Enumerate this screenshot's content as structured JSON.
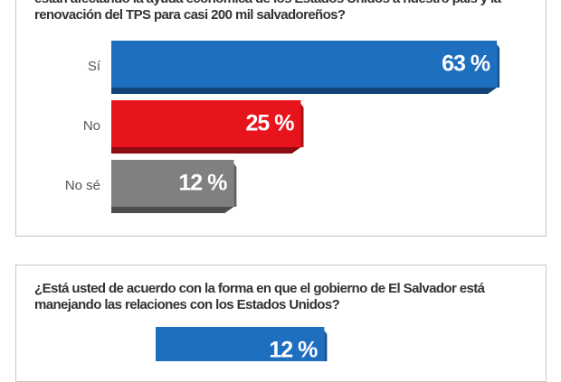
{
  "chart_data": [
    {
      "type": "bar",
      "title": "están afectando la ayuda económica de los Estados Unidos a nuestro país y la renovación del TPS para casi 200 mil salvadoreños?",
      "categories": [
        "Sí",
        "No",
        "No sé"
      ],
      "values": [
        63,
        25,
        12
      ],
      "value_labels": [
        "63 %",
        "25 %",
        "12 %"
      ],
      "colors": [
        "#1f6fc1",
        "#e8141c",
        "#808080"
      ]
    },
    {
      "type": "bar",
      "title": "¿Está usted de acuerdo con la forma en que el gobierno de El Salvador está manejando las relaciones con los Estados Unidos?",
      "categories": [
        null
      ],
      "values": [
        12
      ],
      "value_labels": [
        "12 %"
      ],
      "colors": [
        "#1f6fc1"
      ]
    }
  ]
}
